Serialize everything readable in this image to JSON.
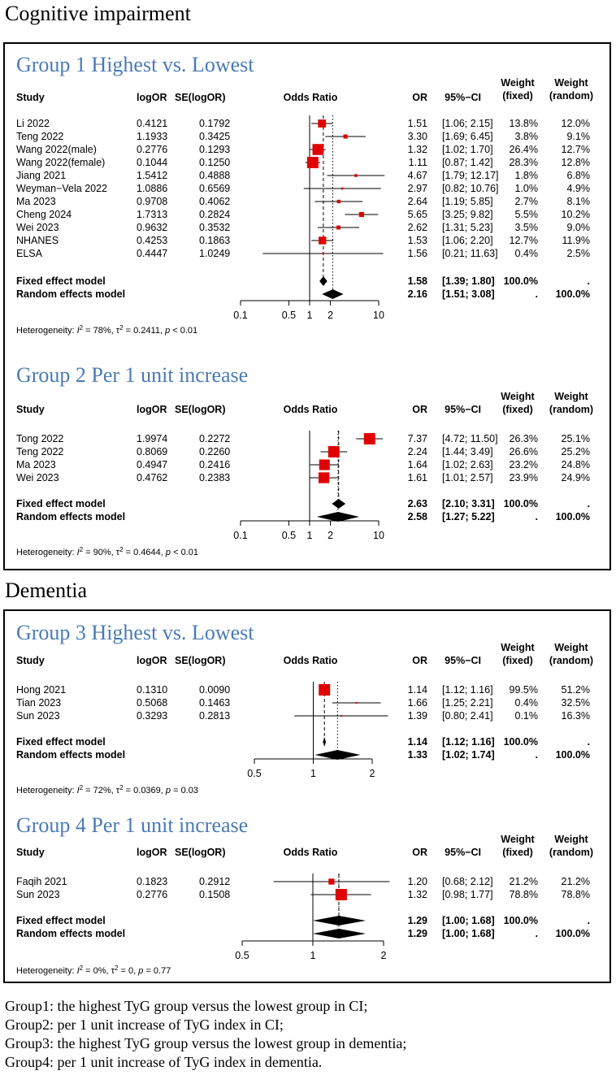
{
  "sections": [
    {
      "title": "Cognitive impairment",
      "groups": [
        0,
        1
      ]
    },
    {
      "title": "Dementia",
      "groups": [
        2,
        3
      ]
    }
  ],
  "headers": {
    "study": "Study",
    "logor": "logOR",
    "se": "SE(logOR)",
    "odds_ratio": "Odds Ratio",
    "or": "OR",
    "ci": "95%−CI",
    "weight": "Weight",
    "fixed": "(fixed)",
    "random": "(random)"
  },
  "colors": {
    "title": "#4a7ab7",
    "box": "#e10000",
    "line": "#000000"
  },
  "chart_data": [
    {
      "type": "forest",
      "title": "Group 1 Highest vs. Lowest",
      "xscale": "log",
      "xticks": [
        0.1,
        0.5,
        1,
        2,
        10
      ],
      "xtick_labels": [
        "0.1",
        "0.5",
        "1",
        "2",
        "10"
      ],
      "xlim": [
        0.1,
        10
      ],
      "studies": [
        {
          "name": "Li 2022",
          "logor": "0.4121",
          "se": "0.1792",
          "or": 1.51,
          "lo": 1.06,
          "hi": 2.15,
          "ci": "[1.06; 2.15]",
          "wf": "13.8%",
          "wr": "12.0%",
          "w": 13.8
        },
        {
          "name": "Teng 2022",
          "logor": "1.1933",
          "se": "0.3425",
          "or": 3.3,
          "lo": 1.69,
          "hi": 6.45,
          "ci": "[1.69; 6.45]",
          "wf": "3.8%",
          "wr": "9.1%",
          "w": 3.8
        },
        {
          "name": "Wang 2022(male)",
          "logor": "0.2776",
          "se": "0.1293",
          "or": 1.32,
          "lo": 1.02,
          "hi": 1.7,
          "ci": "[1.02; 1.70]",
          "wf": "26.4%",
          "wr": "12.7%",
          "w": 26.4
        },
        {
          "name": "Wang 2022(female)",
          "logor": "0.1044",
          "se": "0.1250",
          "or": 1.11,
          "lo": 0.87,
          "hi": 1.42,
          "ci": "[0.87; 1.42]",
          "wf": "28.3%",
          "wr": "12.8%",
          "w": 28.3
        },
        {
          "name": "Jiang 2021",
          "logor": "1.5412",
          "se": "0.4888",
          "or": 4.67,
          "lo": 1.79,
          "hi": 12.17,
          "ci": "[1.79; 12.17]",
          "wf": "1.8%",
          "wr": "6.8%",
          "w": 1.8
        },
        {
          "name": "Weyman−Vela 2022",
          "logor": "1.0886",
          "se": "0.6569",
          "or": 2.97,
          "lo": 0.82,
          "hi": 10.76,
          "ci": "[0.82; 10.76]",
          "wf": "1.0%",
          "wr": "4.9%",
          "w": 1.0
        },
        {
          "name": "Ma 2023",
          "logor": "0.9708",
          "se": "0.4062",
          "or": 2.64,
          "lo": 1.19,
          "hi": 5.85,
          "ci": "[1.19; 5.85]",
          "wf": "2.7%",
          "wr": "8.1%",
          "w": 2.7
        },
        {
          "name": "Cheng 2024",
          "logor": "1.7313",
          "se": "0.2824",
          "or": 5.65,
          "lo": 3.25,
          "hi": 9.82,
          "ci": "[3.25; 9.82]",
          "wf": "5.5%",
          "wr": "10.2%",
          "w": 5.5
        },
        {
          "name": "Wei 2023",
          "logor": "0.9632",
          "se": "0.3532",
          "or": 2.62,
          "lo": 1.31,
          "hi": 5.23,
          "ci": "[1.31; 5.23]",
          "wf": "3.5%",
          "wr": "9.0%",
          "w": 3.5
        },
        {
          "name": "NHANES",
          "logor": "0.4253",
          "se": "0.1863",
          "or": 1.53,
          "lo": 1.06,
          "hi": 2.2,
          "ci": "[1.06; 2.20]",
          "wf": "12.7%",
          "wr": "11.9%",
          "w": 12.7
        },
        {
          "name": "ELSA",
          "logor": "0.4447",
          "se": "1.0249",
          "or": 1.56,
          "lo": 0.21,
          "hi": 11.63,
          "ci": "[0.21; 11.63]",
          "wf": "0.4%",
          "wr": "2.5%",
          "w": 0.4
        }
      ],
      "fixed": {
        "label": "Fixed effect model",
        "or": 1.58,
        "lo": 1.39,
        "hi": 1.8,
        "ci": "[1.39; 1.80]",
        "wf": "100.0%",
        "wr": "."
      },
      "random": {
        "label": "Random effects model",
        "or": 2.16,
        "lo": 1.51,
        "hi": 3.08,
        "ci": "[1.51; 3.08]",
        "wf": ".",
        "wr": "100.0%"
      },
      "heterogeneity": {
        "prefix": "Heterogeneity: ",
        "i2_label": "I",
        "i2_value": " = 78%, ",
        "tau_label": "τ",
        "tau_value": " = 0.2411, ",
        "p_label": "p",
        "p_value": " < 0.01"
      }
    },
    {
      "type": "forest",
      "title": "Group 2 Per 1 unit increase",
      "xscale": "log",
      "xticks": [
        0.1,
        0.5,
        1,
        2,
        10
      ],
      "xtick_labels": [
        "0.1",
        "0.5",
        "1",
        "2",
        "10"
      ],
      "xlim": [
        0.1,
        10
      ],
      "studies": [
        {
          "name": "Tong 2022",
          "logor": "1.9974",
          "se": "0.2272",
          "or": 7.37,
          "lo": 4.72,
          "hi": 11.5,
          "ci": "[4.72; 11.50]",
          "wf": "26.3%",
          "wr": "25.1%",
          "w": 26.3
        },
        {
          "name": "Teng 2022",
          "logor": "0.8069",
          "se": "0.2260",
          "or": 2.24,
          "lo": 1.44,
          "hi": 3.49,
          "ci": "[1.44; 3.49]",
          "wf": "26.6%",
          "wr": "25.2%",
          "w": 26.6
        },
        {
          "name": "Ma 2023",
          "logor": "0.4947",
          "se": "0.2416",
          "or": 1.64,
          "lo": 1.02,
          "hi": 2.63,
          "ci": "[1.02; 2.63]",
          "wf": "23.2%",
          "wr": "24.8%",
          "w": 23.2
        },
        {
          "name": "Wei 2023",
          "logor": "0.4762",
          "se": "0.2383",
          "or": 1.61,
          "lo": 1.01,
          "hi": 2.57,
          "ci": "[1.01; 2.57]",
          "wf": "23.9%",
          "wr": "24.9%",
          "w": 23.9
        }
      ],
      "fixed": {
        "label": "Fixed effect model",
        "or": 2.63,
        "lo": 2.1,
        "hi": 3.31,
        "ci": "[2.10; 3.31]",
        "wf": "100.0%",
        "wr": "."
      },
      "random": {
        "label": "Random effects model",
        "or": 2.58,
        "lo": 1.27,
        "hi": 5.22,
        "ci": "[1.27; 5.22]",
        "wf": ".",
        "wr": "100.0%"
      },
      "heterogeneity": {
        "prefix": "Heterogeneity: ",
        "i2_label": "I",
        "i2_value": " = 90%, ",
        "tau_label": "τ",
        "tau_value": " = 0.4644, ",
        "p_label": "p",
        "p_value": " < 0.01"
      }
    },
    {
      "type": "forest",
      "title": "Group 3 Highest vs. Lowest",
      "xscale": "log",
      "xticks": [
        0.5,
        1,
        2
      ],
      "xtick_labels": [
        "0.5",
        "1",
        "2"
      ],
      "xlim": [
        0.5,
        2
      ],
      "studies": [
        {
          "name": "Hong 2021",
          "logor": "0.1310",
          "se": "0.0090",
          "or": 1.14,
          "lo": 1.12,
          "hi": 1.16,
          "ci": "[1.12; 1.16]",
          "wf": "99.5%",
          "wr": "51.2%",
          "w": 99.5
        },
        {
          "name": "Tian 2023",
          "logor": "0.5068",
          "se": "0.1463",
          "or": 1.66,
          "lo": 1.25,
          "hi": 2.21,
          "ci": "[1.25; 2.21]",
          "wf": "0.4%",
          "wr": "32.5%",
          "w": 0.4
        },
        {
          "name": "Sun 2023",
          "logor": "0.3293",
          "se": "0.2813",
          "or": 1.39,
          "lo": 0.8,
          "hi": 2.41,
          "ci": "[0.80; 2.41]",
          "wf": "0.1%",
          "wr": "16.3%",
          "w": 0.1
        }
      ],
      "fixed": {
        "label": "Fixed effect model",
        "or": 1.14,
        "lo": 1.12,
        "hi": 1.16,
        "ci": "[1.12; 1.16]",
        "wf": "100.0%",
        "wr": "."
      },
      "random": {
        "label": "Random effects model",
        "or": 1.33,
        "lo": 1.02,
        "hi": 1.74,
        "ci": "[1.02; 1.74]",
        "wf": ".",
        "wr": "100.0%"
      },
      "heterogeneity": {
        "prefix": "Heterogeneity: ",
        "i2_label": "I",
        "i2_value": " = 72%, ",
        "tau_label": "τ",
        "tau_value": " = 0.0369, ",
        "p_label": "p",
        "p_value": " = 0.03"
      }
    },
    {
      "type": "forest",
      "title": "Group 4 Per 1 unit increase",
      "xscale": "log",
      "xticks": [
        0.5,
        1,
        2
      ],
      "xtick_labels": [
        "0.5",
        "1",
        "2"
      ],
      "xlim": [
        0.5,
        2
      ],
      "studies": [
        {
          "name": "Faqih 2021",
          "logor": "0.1823",
          "se": "0.2912",
          "or": 1.2,
          "lo": 0.68,
          "hi": 2.12,
          "ci": "[0.68; 2.12]",
          "wf": "21.2%",
          "wr": "21.2%",
          "w": 21.2
        },
        {
          "name": "Sun 2023",
          "logor": "0.2776",
          "se": "0.1508",
          "or": 1.32,
          "lo": 0.98,
          "hi": 1.77,
          "ci": "[0.98; 1.77]",
          "wf": "78.8%",
          "wr": "78.8%",
          "w": 78.8
        }
      ],
      "fixed": {
        "label": "Fixed effect model",
        "or": 1.29,
        "lo": 1.0,
        "hi": 1.68,
        "ci": "[1.00; 1.68]",
        "wf": "100.0%",
        "wr": "."
      },
      "random": {
        "label": "Random effects model",
        "or": 1.29,
        "lo": 1.0,
        "hi": 1.68,
        "ci": "[1.00; 1.68]",
        "wf": ".",
        "wr": "100.0%"
      },
      "heterogeneity": {
        "prefix": "Heterogeneity: ",
        "i2_label": "I",
        "i2_value": " = 0%, ",
        "tau_label": "τ",
        "tau_value": " = 0, ",
        "p_label": "p",
        "p_value": " = 0.77"
      }
    }
  ],
  "footnotes": [
    "Group1: the highest TyG group versus the lowest group in CI;",
    "Group2: per 1 unit increase of TyG index in CI;",
    "Group3: the highest TyG group versus the lowest group in dementia;",
    "Group4: per 1 unit increase of TyG index in dementia."
  ]
}
